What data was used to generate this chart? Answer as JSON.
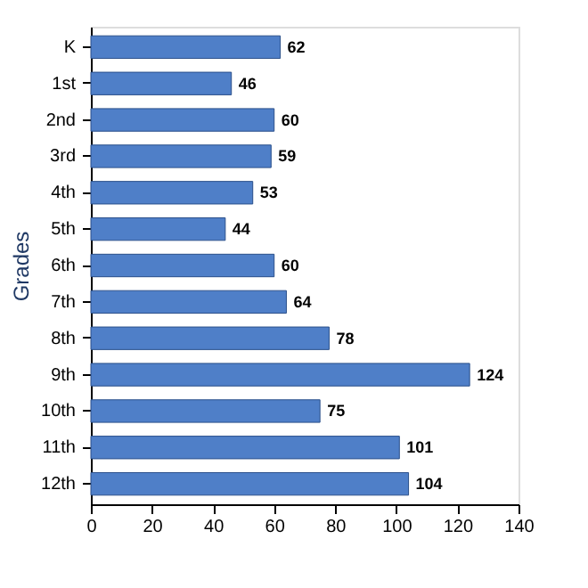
{
  "chart_data": {
    "type": "bar",
    "orientation": "horizontal",
    "ylabel": "Grades",
    "categories": [
      "K",
      "1st",
      "2nd",
      "3rd",
      "4th",
      "5th",
      "6th",
      "7th",
      "8th",
      "9th",
      "10th",
      "11th",
      "12th"
    ],
    "values": [
      62,
      46,
      60,
      59,
      53,
      44,
      60,
      64,
      78,
      124,
      75,
      101,
      104
    ],
    "color": "#4f7fc8",
    "xlim": [
      0,
      140
    ],
    "xticks": [
      0,
      20,
      40,
      60,
      80,
      100,
      120,
      140
    ],
    "grid": false,
    "data_labels": true
  }
}
